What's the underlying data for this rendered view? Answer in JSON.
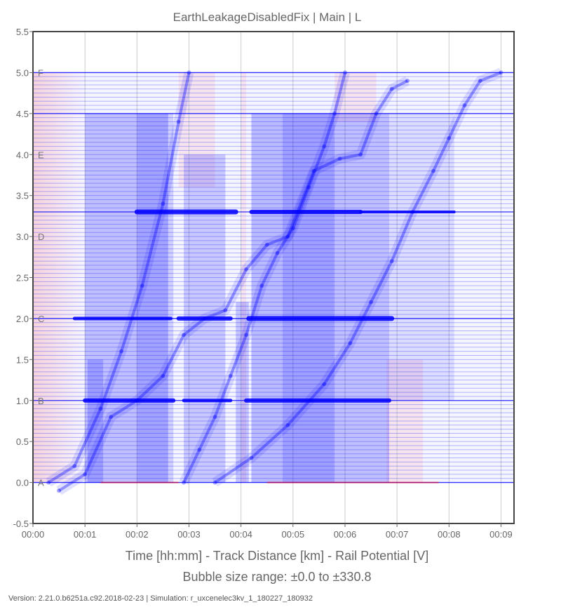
{
  "chart_data": {
    "type": "scatter",
    "title": "EarthLeakageDisabledFix | Main | L",
    "xlabel": "Time [hh:mm] - Track Distance [km] - Rail Potential [V]",
    "subtitle": "Bubble size range: ±0.0 to ±330.8",
    "xlim": [
      0,
      9.25
    ],
    "ylim": [
      -0.5,
      5.5
    ],
    "x_ticks": [
      "00:00",
      "00:01",
      "00:02",
      "00:03",
      "00:04",
      "00:05",
      "00:06",
      "00:07",
      "00:08",
      "00:09"
    ],
    "y_ticks": [
      "-0.5",
      "0.0",
      "0.5",
      "1.0",
      "1.5",
      "2.0",
      "2.5",
      "3.0",
      "3.5",
      "4.0",
      "4.5",
      "5.0",
      "5.5"
    ],
    "stations": [
      {
        "name": "A",
        "km": 0.0
      },
      {
        "name": "B",
        "km": 1.0
      },
      {
        "name": "C",
        "km": 2.0
      },
      {
        "name": "D",
        "km": 3.0
      },
      {
        "name": "E",
        "km": 4.0
      },
      {
        "name": "F",
        "km": 5.0
      }
    ],
    "strong_lines_km": [
      0.0,
      1.0,
      2.0,
      3.3,
      4.5,
      5.0
    ],
    "series": [
      {
        "x": [
          0.3,
          0.8,
          1.3,
          1.7,
          2.1,
          2.5,
          2.8,
          3.0
        ],
        "y": [
          0.0,
          0.2,
          0.9,
          1.6,
          2.4,
          3.4,
          4.4,
          5.0
        ]
      },
      {
        "x": [
          0.5,
          1.0,
          1.5,
          2.0,
          2.5,
          2.9,
          3.3,
          3.7,
          4.1,
          4.5,
          4.9,
          5.4,
          5.9,
          6.3,
          6.6,
          6.9,
          7.2
        ],
        "y": [
          -0.1,
          0.1,
          0.8,
          1.0,
          1.3,
          1.8,
          2.0,
          2.1,
          2.6,
          2.9,
          3.0,
          3.8,
          3.95,
          4.0,
          4.5,
          4.8,
          4.9
        ]
      },
      {
        "x": [
          2.9,
          3.2,
          3.5,
          3.8,
          4.1,
          4.4,
          4.7,
          5.0,
          5.3,
          5.6,
          5.8,
          6.0
        ],
        "y": [
          0.0,
          0.4,
          0.8,
          1.3,
          1.8,
          2.4,
          2.8,
          3.1,
          3.6,
          4.1,
          4.5,
          5.0
        ]
      },
      {
        "x": [
          3.5,
          4.2,
          4.9,
          5.6,
          6.1,
          6.5,
          6.9,
          7.3,
          7.7,
          8.0,
          8.3,
          8.6,
          9.0
        ],
        "y": [
          0.0,
          0.3,
          0.7,
          1.2,
          1.7,
          2.2,
          2.7,
          3.3,
          3.8,
          4.2,
          4.6,
          4.9,
          5.0
        ]
      }
    ],
    "colors": {
      "positive": "#0000ff",
      "negative": "#ff0000",
      "grid": "#cccccc",
      "frame": "#444444"
    }
  },
  "footer": "Version: 2.21.0.b6251a.c92.2018-02-23 | Simulation: r_uxcenelec3kv_1_180227_180932"
}
